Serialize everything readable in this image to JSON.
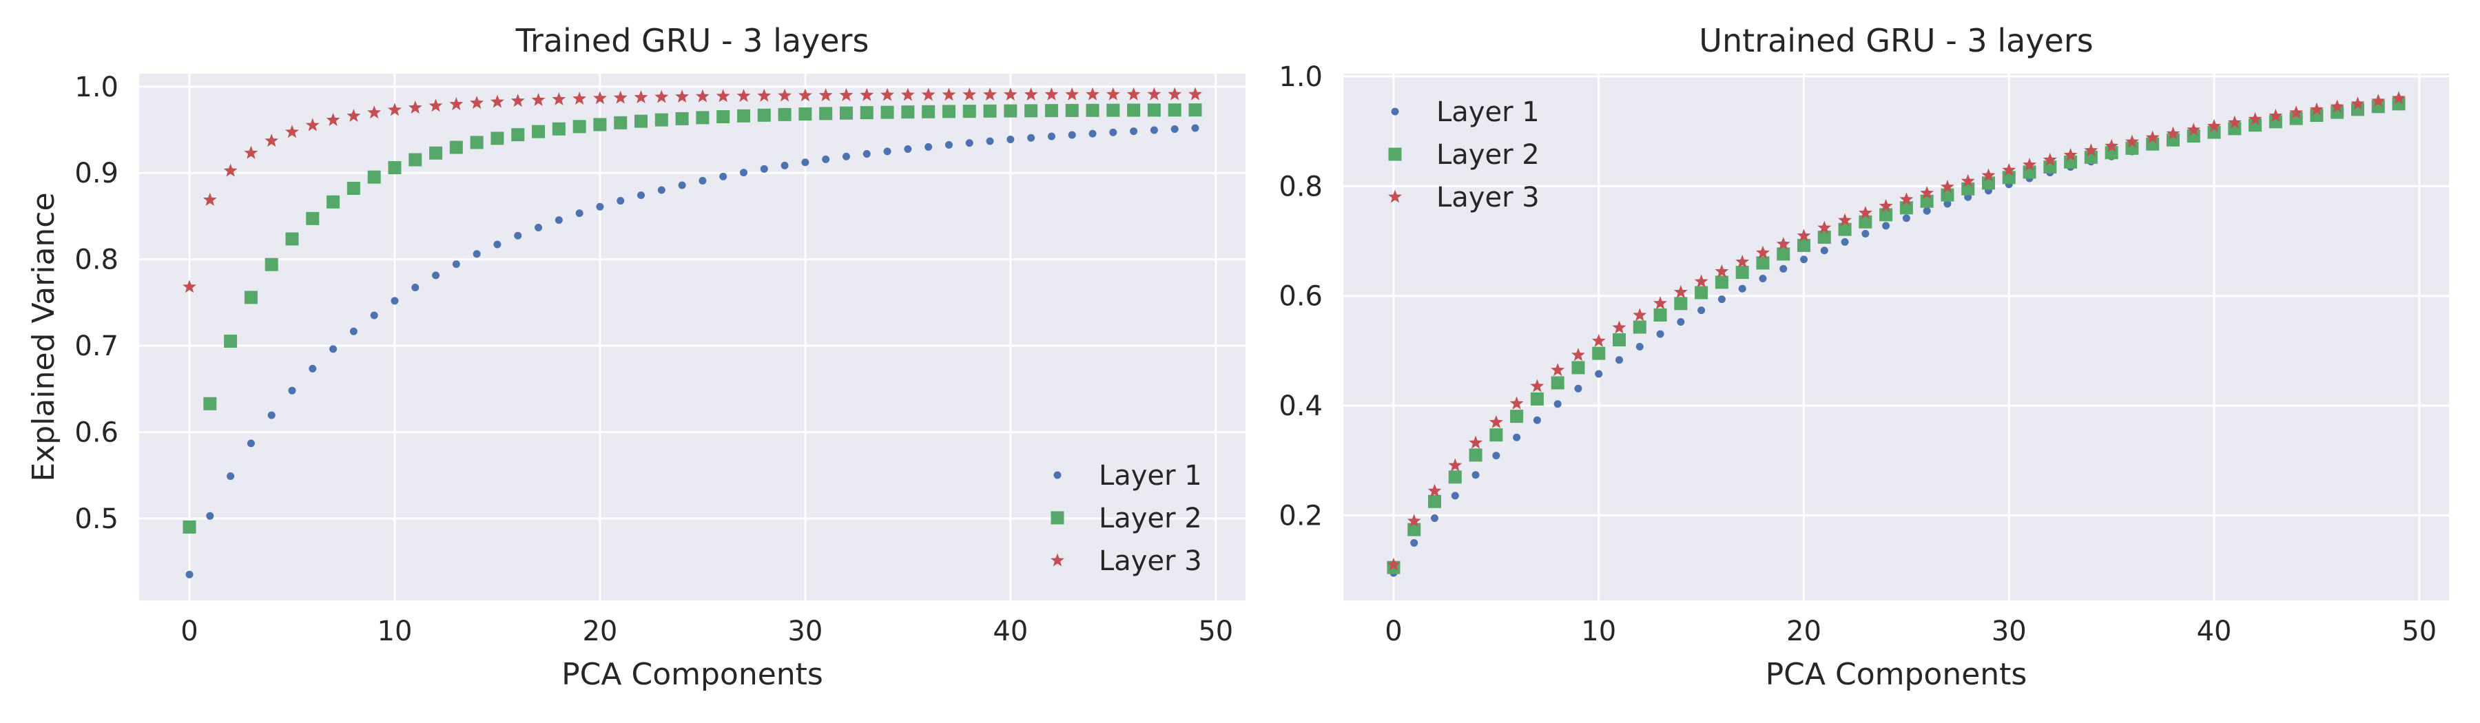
{
  "chart_data": [
    {
      "type": "scatter",
      "title": "Trained GRU - 3 layers",
      "xlabel": "PCA Components",
      "ylabel": "Explained Variance",
      "xlim": [
        -2.45,
        51.45
      ],
      "ylim": [
        0.405,
        1.015
      ],
      "xticks": [
        0,
        10,
        20,
        30,
        40,
        50
      ],
      "yticks": [
        0.5,
        0.6,
        0.7,
        0.8,
        0.9,
        1.0
      ],
      "xtick_labels": [
        "0",
        "10",
        "20",
        "30",
        "40",
        "50"
      ],
      "ytick_labels": [
        "0.5",
        "0.6",
        "0.7",
        "0.8",
        "0.9",
        "1.0"
      ],
      "grid": true,
      "legend_position": "lower-right",
      "series": [
        {
          "name": "Layer 1",
          "marker": "dot",
          "color": "#4c72b0",
          "y_start": 0.435,
          "y_end": 0.952,
          "curve_k": 0.135,
          "curve_p": 0.82,
          "n": 50
        },
        {
          "name": "Layer 2",
          "marker": "square",
          "color": "#55a868",
          "y_start": 0.49,
          "y_end": 0.973,
          "curve_k": 0.35,
          "curve_p": 0.75,
          "n": 50
        },
        {
          "name": "Layer 3",
          "marker": "star",
          "color": "#c44e52",
          "y_start": 0.768,
          "y_end": 0.991,
          "curve_k": 0.6,
          "curve_p": 0.62,
          "n": 50
        }
      ]
    },
    {
      "type": "scatter",
      "title": "Untrained GRU - 3 layers",
      "xlabel": "PCA Components",
      "ylabel": "",
      "xlim": [
        -2.45,
        51.45
      ],
      "ylim": [
        0.045,
        1.005
      ],
      "xticks": [
        0,
        10,
        20,
        30,
        40,
        50
      ],
      "yticks": [
        0.2,
        0.4,
        0.6,
        0.8,
        1.0
      ],
      "xtick_labels": [
        "0",
        "10",
        "20",
        "30",
        "40",
        "50"
      ],
      "ytick_labels": [
        "0.2",
        "0.4",
        "0.6",
        "0.8",
        "1.0"
      ],
      "grid": true,
      "legend_position": "upper-left",
      "series": [
        {
          "name": "Layer 1",
          "marker": "dot",
          "color": "#4c72b0",
          "y_start": 0.095,
          "y_end": 0.955,
          "curve_k": 0.055,
          "curve_p": 0.9,
          "n": 50
        },
        {
          "name": "Layer 2",
          "marker": "square",
          "color": "#55a868",
          "y_start": 0.105,
          "y_end": 0.95,
          "curve_k": 0.072,
          "curve_p": 0.84,
          "n": 50
        },
        {
          "name": "Layer 3",
          "marker": "star",
          "color": "#c44e52",
          "y_start": 0.11,
          "y_end": 0.96,
          "curve_k": 0.082,
          "curve_p": 0.8,
          "n": 50
        }
      ]
    }
  ]
}
